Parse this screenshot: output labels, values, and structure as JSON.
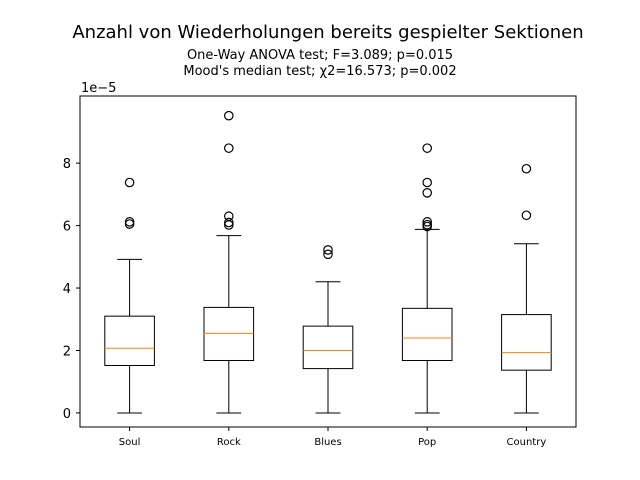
{
  "chart_data": {
    "type": "boxplot",
    "title": "Anzahl von Wiederholungen bereits gespielter Sektionen",
    "subtitles": [
      "One-Way ANOVA test; F=3.089; p=0.015",
      "Mood's median test; χ2=16.573; p=0.002"
    ],
    "xlabel": "",
    "ylabel": "",
    "y_offset_label": "1e−5",
    "ylim": [
      -0.45,
      10.15
    ],
    "yticks": [
      0,
      2,
      4,
      6,
      8
    ],
    "grid": false,
    "categories": [
      "Soul",
      "Rock",
      "Blues",
      "Pop",
      "Country"
    ],
    "boxes": [
      {
        "label": "Soul",
        "whisker_low": 0.0,
        "q1": 1.52,
        "median": 2.07,
        "q3": 3.1,
        "whisker_high": 4.92,
        "outliers": [
          6.05,
          6.12,
          7.38
        ]
      },
      {
        "label": "Rock",
        "whisker_low": 0.0,
        "q1": 1.68,
        "median": 2.55,
        "q3": 3.38,
        "whisker_high": 5.68,
        "outliers": [
          6.02,
          6.1,
          6.3,
          8.48,
          9.52
        ]
      },
      {
        "label": "Blues",
        "whisker_low": 0.0,
        "q1": 1.42,
        "median": 2.0,
        "q3": 2.78,
        "whisker_high": 4.2,
        "outliers": [
          5.08,
          5.22
        ]
      },
      {
        "label": "Pop",
        "whisker_low": 0.0,
        "q1": 1.68,
        "median": 2.4,
        "q3": 3.35,
        "whisker_high": 5.88,
        "outliers": [
          5.97,
          6.03,
          6.12,
          7.05,
          7.38,
          8.48
        ]
      },
      {
        "label": "Country",
        "whisker_low": 0.0,
        "q1": 1.37,
        "median": 1.93,
        "q3": 3.15,
        "whisker_high": 5.42,
        "outliers": [
          6.33,
          7.82
        ]
      }
    ],
    "colors": {
      "box": "#000000",
      "median": "#ff7f0e",
      "background": "#ffffff"
    }
  }
}
